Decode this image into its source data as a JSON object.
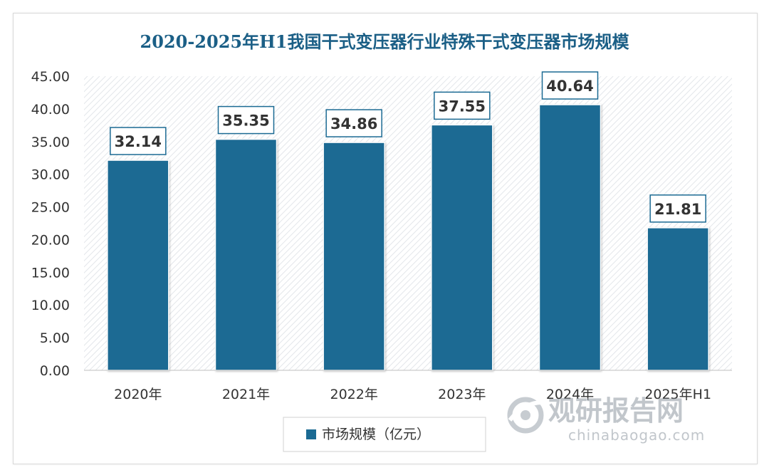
{
  "chart_data": {
    "type": "bar",
    "title": "2020-2025年H1我国干式变压器行业特殊干式变压器市场规模",
    "categories": [
      "2020年",
      "2021年",
      "2022年",
      "2023年",
      "2024年",
      "2025年H1"
    ],
    "series": [
      {
        "name": "市场规模（亿元）",
        "values": [
          32.14,
          35.35,
          34.86,
          37.55,
          40.64,
          21.81
        ],
        "data_labels": [
          "32.14",
          "35.35",
          "34.86",
          "37.55",
          "40.64",
          "21.81"
        ]
      }
    ],
    "yticks": [
      "0.00",
      "5.00",
      "10.00",
      "15.00",
      "20.00",
      "25.00",
      "30.00",
      "35.00",
      "40.00",
      "45.00"
    ],
    "ylim": [
      0,
      45
    ],
    "xlabel": "",
    "ylabel": "",
    "legend_position": "bottom-center",
    "colors": {
      "bar": "#1b6a93",
      "title": "#1b5f86",
      "label_border": "#1b6a93",
      "hatch": "#e3e6ea"
    }
  },
  "watermark": {
    "brand_cn": "观研报告网",
    "site": "chinabaogao.com"
  }
}
